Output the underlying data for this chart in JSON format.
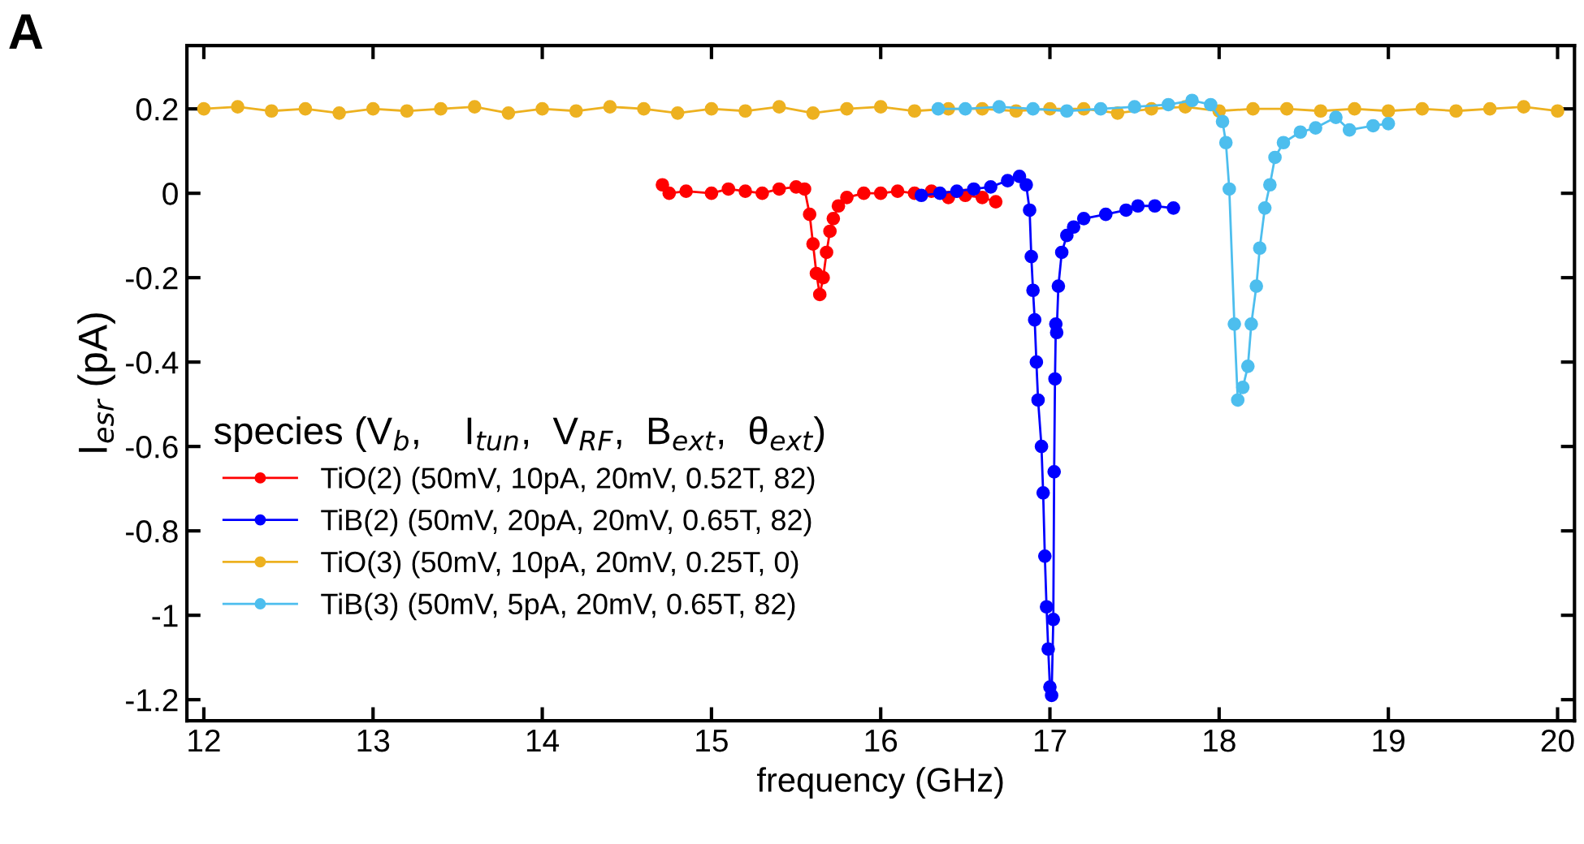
{
  "chart_data": {
    "type": "line",
    "xlabel": "frequency (GHz)",
    "ylabel": "I$_{esr}$ (pA)",
    "legend_title": "species (V$_{b}$,    I$_{tun}$,  V$_{RF}$,  B$_{ext}$,  θ$_{ext}$)",
    "annotations": [
      "A"
    ],
    "xlim": [
      11.9,
      20.1
    ],
    "ylim": [
      -1.25,
      0.35
    ],
    "xticks": [
      12,
      13,
      14,
      15,
      16,
      17,
      18,
      19,
      20
    ],
    "yticks": [
      -1.2,
      -1,
      -0.8,
      -0.6,
      -0.4,
      -0.2,
      0,
      0.2
    ],
    "grid": false,
    "legend": "left",
    "marker": "circle",
    "line_style": "solid",
    "series": [
      {
        "name": "TiO(2) (50mV, 10pA, 20mV, 0.52T, 82)",
        "color": "#ff0000",
        "x": [
          14.71,
          14.75,
          14.85,
          15.0,
          15.1,
          15.2,
          15.3,
          15.4,
          15.5,
          15.55,
          15.58,
          15.6,
          15.62,
          15.64,
          15.66,
          15.68,
          15.7,
          15.72,
          15.75,
          15.8,
          15.9,
          16.0,
          16.1,
          16.2,
          16.3,
          16.4,
          16.5,
          16.6,
          16.68
        ],
        "values": [
          0.02,
          0.0,
          0.005,
          0.0,
          0.01,
          0.005,
          0.0,
          0.01,
          0.015,
          0.01,
          -0.05,
          -0.12,
          -0.19,
          -0.24,
          -0.2,
          -0.14,
          -0.09,
          -0.06,
          -0.03,
          -0.01,
          0.0,
          0.0,
          0.005,
          0.0,
          0.005,
          -0.01,
          -0.005,
          -0.01,
          -0.02
        ]
      },
      {
        "name": "TiB(2) (50mV, 20pA, 20mV, 0.65T, 82)",
        "color": "#0000ff",
        "x": [
          16.24,
          16.35,
          16.45,
          16.55,
          16.65,
          16.75,
          16.82,
          16.86,
          16.88,
          16.89,
          16.9,
          16.91,
          16.92,
          16.93,
          16.95,
          16.96,
          16.97,
          16.98,
          16.99,
          17.0,
          17.01,
          17.02,
          17.025,
          17.03,
          17.035,
          17.04,
          17.05,
          17.07,
          17.1,
          17.14,
          17.2,
          17.33,
          17.45,
          17.52,
          17.62,
          17.73
        ],
        "values": [
          -0.005,
          0.0,
          0.005,
          0.01,
          0.015,
          0.03,
          0.04,
          0.02,
          -0.04,
          -0.15,
          -0.23,
          -0.3,
          -0.4,
          -0.49,
          -0.6,
          -0.71,
          -0.86,
          -0.98,
          -1.08,
          -1.17,
          -1.19,
          -1.01,
          -0.66,
          -0.44,
          -0.31,
          -0.33,
          -0.22,
          -0.14,
          -0.1,
          -0.08,
          -0.06,
          -0.05,
          -0.04,
          -0.03,
          -0.03,
          -0.035
        ]
      },
      {
        "name": "TiO(3) (50mV, 10pA, 20mV, 0.25T, 0)",
        "color": "#edb120",
        "x": [
          12.0,
          12.2,
          12.4,
          12.6,
          12.8,
          13.0,
          13.2,
          13.4,
          13.6,
          13.8,
          14.0,
          14.2,
          14.4,
          14.6,
          14.8,
          15.0,
          15.2,
          15.4,
          15.6,
          15.8,
          16.0,
          16.2,
          16.4,
          16.6,
          16.8,
          17.0,
          17.2,
          17.4,
          17.6,
          17.8,
          18.0,
          18.2,
          18.4,
          18.6,
          18.8,
          19.0,
          19.2,
          19.4,
          19.6,
          19.8,
          20.0
        ],
        "values": [
          0.2,
          0.205,
          0.195,
          0.2,
          0.19,
          0.2,
          0.195,
          0.2,
          0.205,
          0.19,
          0.2,
          0.195,
          0.205,
          0.2,
          0.19,
          0.2,
          0.195,
          0.205,
          0.19,
          0.2,
          0.205,
          0.195,
          0.2,
          0.2,
          0.195,
          0.2,
          0.2,
          0.19,
          0.2,
          0.205,
          0.195,
          0.2,
          0.2,
          0.195,
          0.2,
          0.195,
          0.2,
          0.195,
          0.2,
          0.205,
          0.195
        ]
      },
      {
        "name": "TiB(3) (50mV, 5pA, 20mV, 0.65T, 82)",
        "color": "#4dbeee",
        "x": [
          16.34,
          16.5,
          16.7,
          16.9,
          17.1,
          17.3,
          17.5,
          17.7,
          17.84,
          17.95,
          18.02,
          18.04,
          18.06,
          18.09,
          18.11,
          18.14,
          18.17,
          18.19,
          18.22,
          18.24,
          18.27,
          18.3,
          18.33,
          18.38,
          18.48,
          18.57,
          18.69,
          18.77,
          18.91,
          19.0
        ],
        "values": [
          0.2,
          0.2,
          0.205,
          0.2,
          0.195,
          0.2,
          0.205,
          0.21,
          0.22,
          0.21,
          0.17,
          0.12,
          0.01,
          -0.31,
          -0.49,
          -0.46,
          -0.41,
          -0.31,
          -0.22,
          -0.13,
          -0.035,
          0.02,
          0.085,
          0.12,
          0.145,
          0.155,
          0.18,
          0.15,
          0.16,
          0.165
        ]
      }
    ]
  }
}
